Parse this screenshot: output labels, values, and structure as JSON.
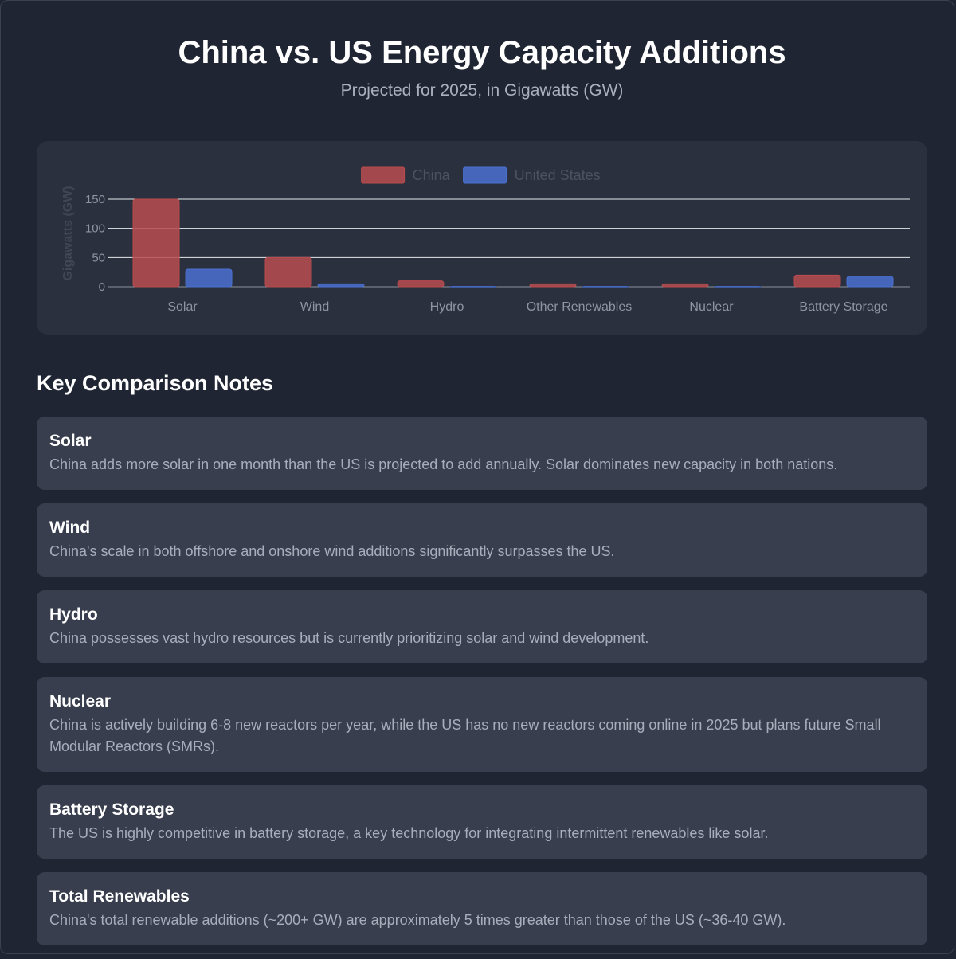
{
  "header": {
    "title": "China vs. US Energy Capacity Additions",
    "subtitle": "Projected for 2025, in Gigawatts (GW)"
  },
  "chart_data": {
    "type": "bar",
    "categories": [
      "Solar",
      "Wind",
      "Hydro",
      "Other Renewables",
      "Nuclear",
      "Battery Storage"
    ],
    "series": [
      {
        "name": "China",
        "values": [
          150,
          50,
          10,
          5,
          5,
          20
        ],
        "color": "#b94c50"
      },
      {
        "name": "United States",
        "values": [
          30,
          5,
          0.5,
          0.5,
          0.5,
          18
        ],
        "color": "#4a70d0"
      }
    ],
    "ylabel": "Gigawatts (GW)",
    "yticks": [
      0,
      50,
      100,
      150
    ],
    "ylim": [
      0,
      150
    ],
    "legend": "top-center",
    "grid": true
  },
  "notes": {
    "heading": "Key Comparison Notes",
    "items": [
      {
        "title": "Solar",
        "text": "China adds more solar in one month than the US is projected to add annually. Solar dominates new capacity in both nations."
      },
      {
        "title": "Wind",
        "text": "China's scale in both offshore and onshore wind additions significantly surpasses the US."
      },
      {
        "title": "Hydro",
        "text": "China possesses vast hydro resources but is currently prioritizing solar and wind development."
      },
      {
        "title": "Nuclear",
        "text": "China is actively building 6-8 new reactors per year, while the US has no new reactors coming online in 2025 but plans future Small Modular Reactors (SMRs)."
      },
      {
        "title": "Battery Storage",
        "text": "The US is highly competitive in battery storage, a key technology for integrating intermittent renewables like solar."
      },
      {
        "title": "Total Renewables",
        "text": "China's total renewable additions (~200+ GW) are approximately 5 times greater than those of the US (~36-40 GW)."
      }
    ]
  }
}
